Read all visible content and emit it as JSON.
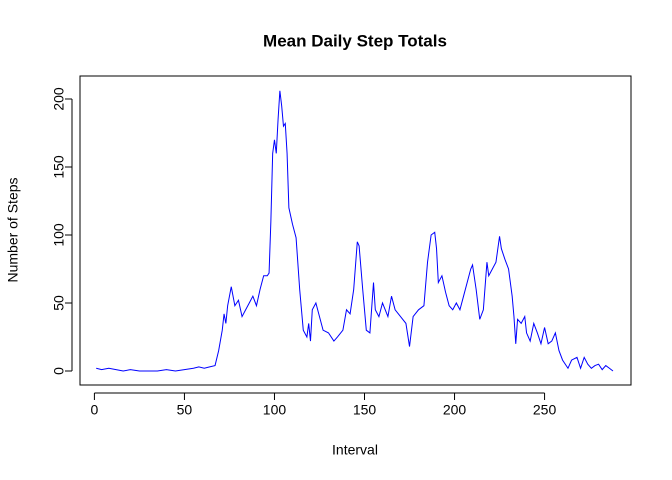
{
  "chart_data": {
    "type": "line",
    "title": "Mean Daily Step Totals",
    "x_label": "Interval",
    "y_label": "Number of Steps",
    "x": [
      1,
      4,
      8,
      12,
      16,
      20,
      25,
      30,
      35,
      40,
      45,
      50,
      55,
      58,
      61,
      64,
      67,
      69,
      71,
      72,
      73,
      74,
      76,
      78,
      80,
      82,
      84,
      86,
      88,
      90,
      92,
      94,
      96,
      97,
      98,
      99,
      100,
      101,
      102,
      103,
      104,
      105,
      106,
      107,
      108,
      110,
      112,
      114,
      116,
      118,
      119,
      120,
      121,
      123,
      125,
      127,
      130,
      133,
      135,
      138,
      140,
      142,
      144,
      146,
      147,
      149,
      151,
      153,
      155,
      156,
      158,
      160,
      163,
      165,
      167,
      170,
      173,
      175,
      177,
      180,
      183,
      185,
      187,
      189,
      190,
      191,
      193,
      195,
      197,
      199,
      201,
      203,
      205,
      207,
      209,
      210,
      212,
      214,
      216,
      218,
      219,
      221,
      223,
      225,
      226,
      228,
      230,
      232,
      233,
      234,
      235,
      237,
      239,
      240,
      242,
      244,
      246,
      248,
      250,
      252,
      254,
      256,
      258,
      260,
      263,
      265,
      268,
      270,
      272,
      274,
      276,
      278,
      280,
      282,
      284,
      286,
      288
    ],
    "series": [
      {
        "name": "Mean Daily Step Totals",
        "color": "#0000ff",
        "values": [
          2,
          1,
          2,
          1,
          0,
          1,
          0,
          0,
          0,
          1,
          0,
          1,
          2,
          3,
          2,
          3,
          4,
          15,
          30,
          42,
          35,
          48,
          62,
          48,
          52,
          40,
          45,
          50,
          55,
          48,
          60,
          70,
          70,
          72,
          110,
          160,
          170,
          160,
          185,
          206,
          195,
          180,
          182,
          160,
          120,
          108,
          98,
          60,
          30,
          25,
          35,
          22,
          45,
          50,
          40,
          30,
          28,
          22,
          25,
          30,
          45,
          42,
          60,
          95,
          92,
          60,
          30,
          28,
          65,
          45,
          40,
          50,
          40,
          55,
          45,
          40,
          35,
          18,
          40,
          45,
          48,
          80,
          100,
          102,
          90,
          65,
          70,
          58,
          48,
          45,
          50,
          45,
          55,
          65,
          75,
          78,
          60,
          38,
          45,
          80,
          70,
          75,
          80,
          99,
          90,
          82,
          75,
          55,
          40,
          20,
          38,
          35,
          40,
          28,
          22,
          35,
          28,
          20,
          32,
          20,
          22,
          28,
          15,
          8,
          2,
          8,
          10,
          2,
          10,
          5,
          2,
          4,
          5,
          1,
          4,
          2,
          0
        ]
      }
    ],
    "xlim": [
      -8,
      298
    ],
    "ylim": [
      -10.3,
      216.9
    ],
    "xticks": [
      0,
      50,
      100,
      150,
      200,
      250
    ],
    "yticks": [
      0,
      50,
      100,
      150,
      200
    ]
  }
}
